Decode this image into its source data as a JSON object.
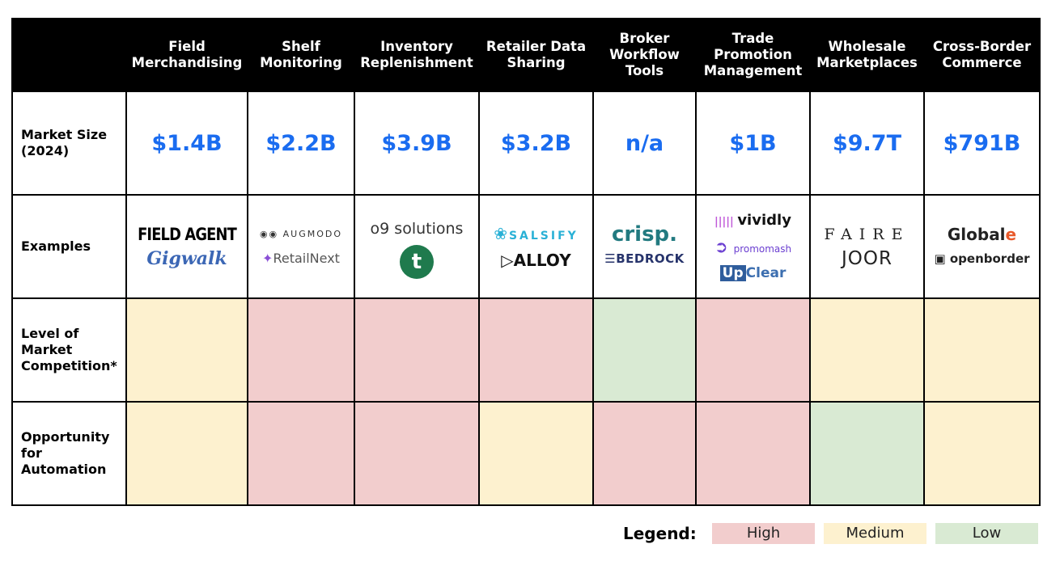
{
  "chart_data": {
    "type": "table",
    "columns": [
      "Field\nMerchandising",
      "Shelf\nMonitoring",
      "Inventory\nReplenishment",
      "Retailer Data\nSharing",
      "Broker\nWorkflow\nTools",
      "Trade\nPromotion\nManagement",
      "Wholesale\nMarketplaces",
      "Cross-Border\nCommerce"
    ],
    "rows": {
      "market_size": {
        "label": "Market Size\n(2024)",
        "values": [
          "$1.4B",
          "$2.2B",
          "$3.9B",
          "$3.2B",
          "n/a",
          "$1B",
          "$9.7T",
          "$791B"
        ]
      },
      "examples": {
        "label": "Examples",
        "values": [
          [
            "FIELD AGENT",
            "Gigwalk"
          ],
          [
            "AUGMODO",
            "RetailNext"
          ],
          [
            "o9 solutions",
            "t"
          ],
          [
            "SALSIFY",
            "ALLOY"
          ],
          [
            "crisp.",
            "BEDROCK"
          ],
          [
            "vividly",
            "promomash",
            "UpClear"
          ],
          [
            "FAIRE",
            "JOOR"
          ],
          [
            "GlobalE",
            "openborder"
          ]
        ]
      },
      "competition": {
        "label": "Level of\nMarket\nCompetition*",
        "values": [
          "Medium",
          "High",
          "High",
          "High",
          "Low",
          "High",
          "Medium",
          "Medium"
        ]
      },
      "automation": {
        "label": "Opportunity\nfor\nAutomation",
        "values": [
          "Medium",
          "High",
          "High",
          "Medium",
          "High",
          "High",
          "Low",
          "Medium"
        ]
      }
    },
    "legend": {
      "title": "Legend:",
      "items": [
        "High",
        "Medium",
        "Low"
      ],
      "colors": {
        "High": "#f2cdcd",
        "Medium": "#fdf1cf",
        "Low": "#d9ead3"
      }
    }
  },
  "logo_labels": {
    "fieldagent": "FIELD AGENT",
    "gigwalk": "Gigwalk",
    "augmodo": "AUGMODO",
    "retailnext": "RetailNext",
    "o9": "o9 solutions",
    "t": "t",
    "salsify": "SALSIFY",
    "alloy": "ALLOY",
    "crisp": "crisp.",
    "bedrock": "BEDROCK",
    "vividly": "vividly",
    "promomash": "promomash",
    "upclear_up": "Up",
    "upclear_clear": "Clear",
    "faire": "FAIRE",
    "joor": "JOOR",
    "globale_global": "Global",
    "globale_e": "e",
    "openborder": "openborder"
  },
  "accent_color": "#1a6cf0"
}
